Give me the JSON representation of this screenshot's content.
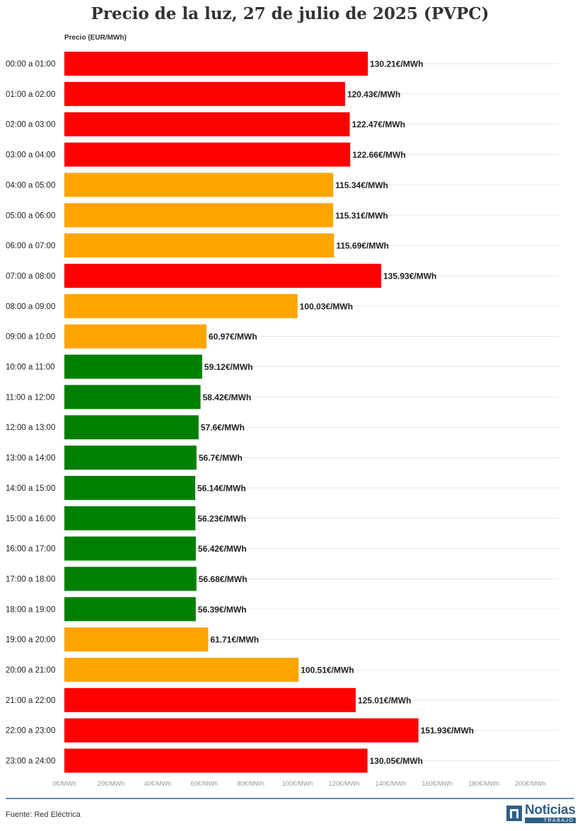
{
  "header": {
    "title": "Precio de la luz, 27 de julio de 2025 (PVPC)"
  },
  "chart_data": {
    "type": "bar",
    "orientation": "horizontal",
    "title": "Precio de la luz, 27 de julio de 2025 (PVPC)",
    "axis_title": "Precio (EUR/MWh)",
    "categories": [
      "00:00 a 01:00",
      "01:00 a 02:00",
      "02:00 a 03:00",
      "03:00 a 04:00",
      "04:00 a 05:00",
      "05:00 a 06:00",
      "06:00 a 07:00",
      "07:00 a 08:00",
      "08:00 a 09:00",
      "09:00 a 10:00",
      "10:00 a 11:00",
      "11:00 a 12:00",
      "12:00 a 13:00",
      "13:00 a 14:00",
      "14:00 a 15:00",
      "15:00 a 16:00",
      "16:00 a 17:00",
      "17:00 a 18:00",
      "18:00 a 19:00",
      "19:00 a 20:00",
      "20:00 a 21:00",
      "21:00 a 22:00",
      "22:00 a 23:00",
      "23:00 a 24:00"
    ],
    "values": [
      130.21,
      120.43,
      122.47,
      122.66,
      115.34,
      115.31,
      115.69,
      135.93,
      100.03,
      60.97,
      59.12,
      58.42,
      57.6,
      56.7,
      56.14,
      56.23,
      56.42,
      56.68,
      56.39,
      61.71,
      100.51,
      125.01,
      151.93,
      130.05
    ],
    "value_labels": [
      "130.21€/MWh",
      "120.43€/MWh",
      "122.47€/MWh",
      "122.66€/MWh",
      "115.34€/MWh",
      "115.31€/MWh",
      "115.69€/MWh",
      "135.93€/MWh",
      "100.03€/MWh",
      "60.97€/MWh",
      "59.12€/MWh",
      "58.42€/MWh",
      "57.6€/MWh",
      "56.7€/MWh",
      "56.14€/MWh",
      "56.23€/MWh",
      "56.42€/MWh",
      "56.68€/MWh",
      "56.39€/MWh",
      "61.71€/MWh",
      "100.51€/MWh",
      "125.01€/MWh",
      "151.93€/MWh",
      "130.05€/MWh"
    ],
    "bar_colors": [
      "#ff0000",
      "#ff0000",
      "#ff0000",
      "#ff0000",
      "#ffa500",
      "#ffa500",
      "#ffa500",
      "#ff0000",
      "#ffa500",
      "#ffa500",
      "#008000",
      "#008000",
      "#008000",
      "#008000",
      "#008000",
      "#008000",
      "#008000",
      "#008000",
      "#008000",
      "#ffa500",
      "#ffa500",
      "#ff0000",
      "#ff0000",
      "#ff0000"
    ],
    "xlim": [
      0,
      200
    ],
    "x_ticks": [
      0,
      20,
      40,
      60,
      80,
      100,
      120,
      140,
      160,
      180,
      200
    ],
    "x_tick_labels": [
      "0€/MWh",
      "20€/MWh",
      "40€/MWh",
      "60€/MWh",
      "80€/MWh",
      "100€/MWh",
      "120€/MWh",
      "140€/MWh",
      "160€/MWh",
      "180€/MWh",
      "200€/MWh"
    ],
    "grid": true,
    "legend": "none"
  },
  "footer": {
    "source": "Fuente: Red Eléctrica",
    "logo_name": "Noticias",
    "logo_sub": "TRABAJO"
  },
  "colors": {
    "grid": "#e6e6e6",
    "axis_text": "#999999",
    "label_text": "#222222",
    "accent": "#2f5f88"
  }
}
